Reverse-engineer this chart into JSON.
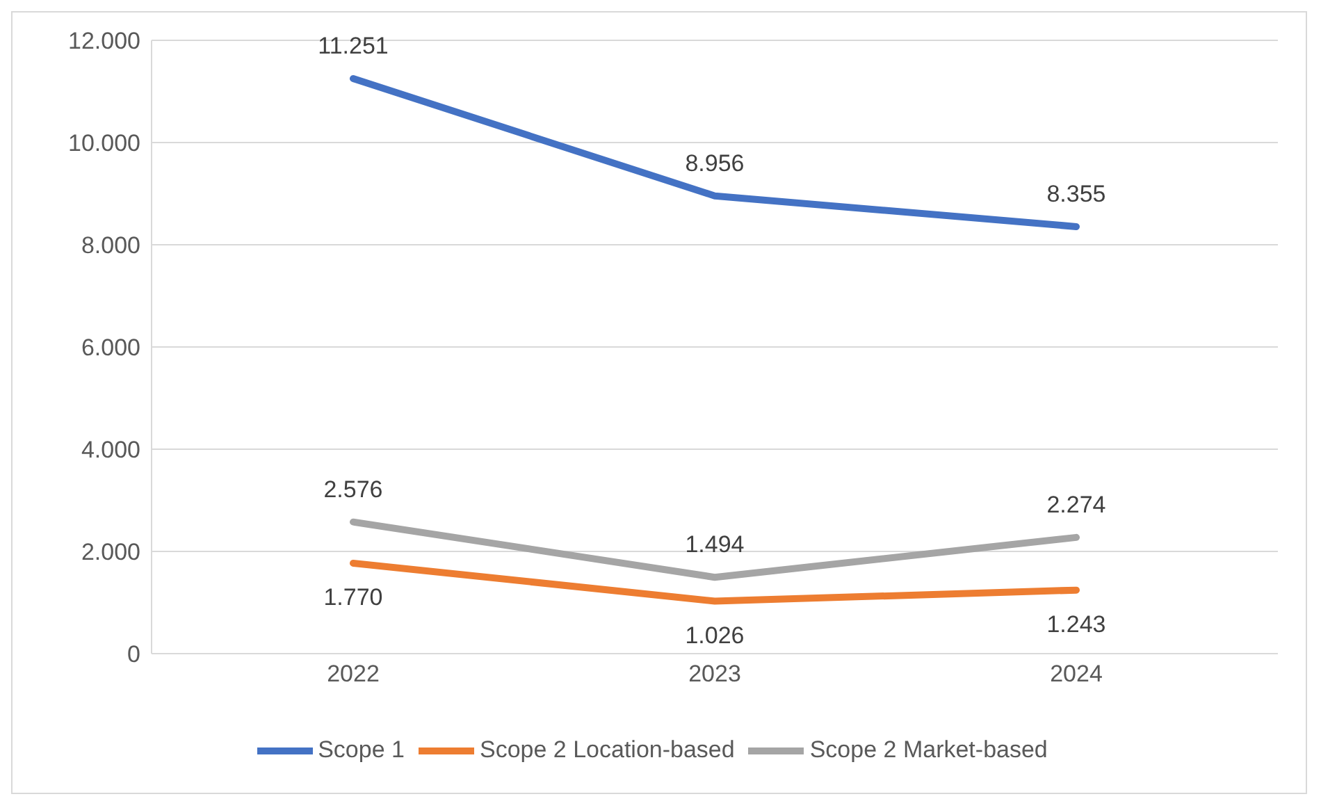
{
  "chart_data": {
    "type": "line",
    "categories": [
      "2022",
      "2023",
      "2024"
    ],
    "series": [
      {
        "name": "Scope 1",
        "color": "#4472c4",
        "values": [
          11251,
          8956,
          8355
        ],
        "value_labels": [
          "11.251",
          "8.956",
          "8.355"
        ]
      },
      {
        "name": "Scope 2 Location-based",
        "color": "#ed7d31",
        "values": [
          1770,
          1026,
          1243
        ],
        "value_labels": [
          "1.770",
          "1.026",
          "1.243"
        ]
      },
      {
        "name": "Scope 2 Market-based",
        "color": "#a5a5a5",
        "values": [
          2576,
          1494,
          2274
        ],
        "value_labels": [
          "2.576",
          "1.494",
          "2.274"
        ]
      }
    ],
    "ylim": [
      0,
      12000
    ],
    "yticks": [
      0,
      {
        "value": 2000,
        "label": "2.000"
      },
      {
        "value": 4000,
        "label": "4.000"
      },
      {
        "value": 6000,
        "label": "6.000"
      },
      {
        "value": 8000,
        "label": "8.000"
      },
      {
        "value": 10000,
        "label": "10.000"
      },
      {
        "value": 12000,
        "label": "12.000"
      }
    ],
    "grid": "y",
    "legend": "bottom",
    "marker": "none",
    "line_style": "solid"
  }
}
